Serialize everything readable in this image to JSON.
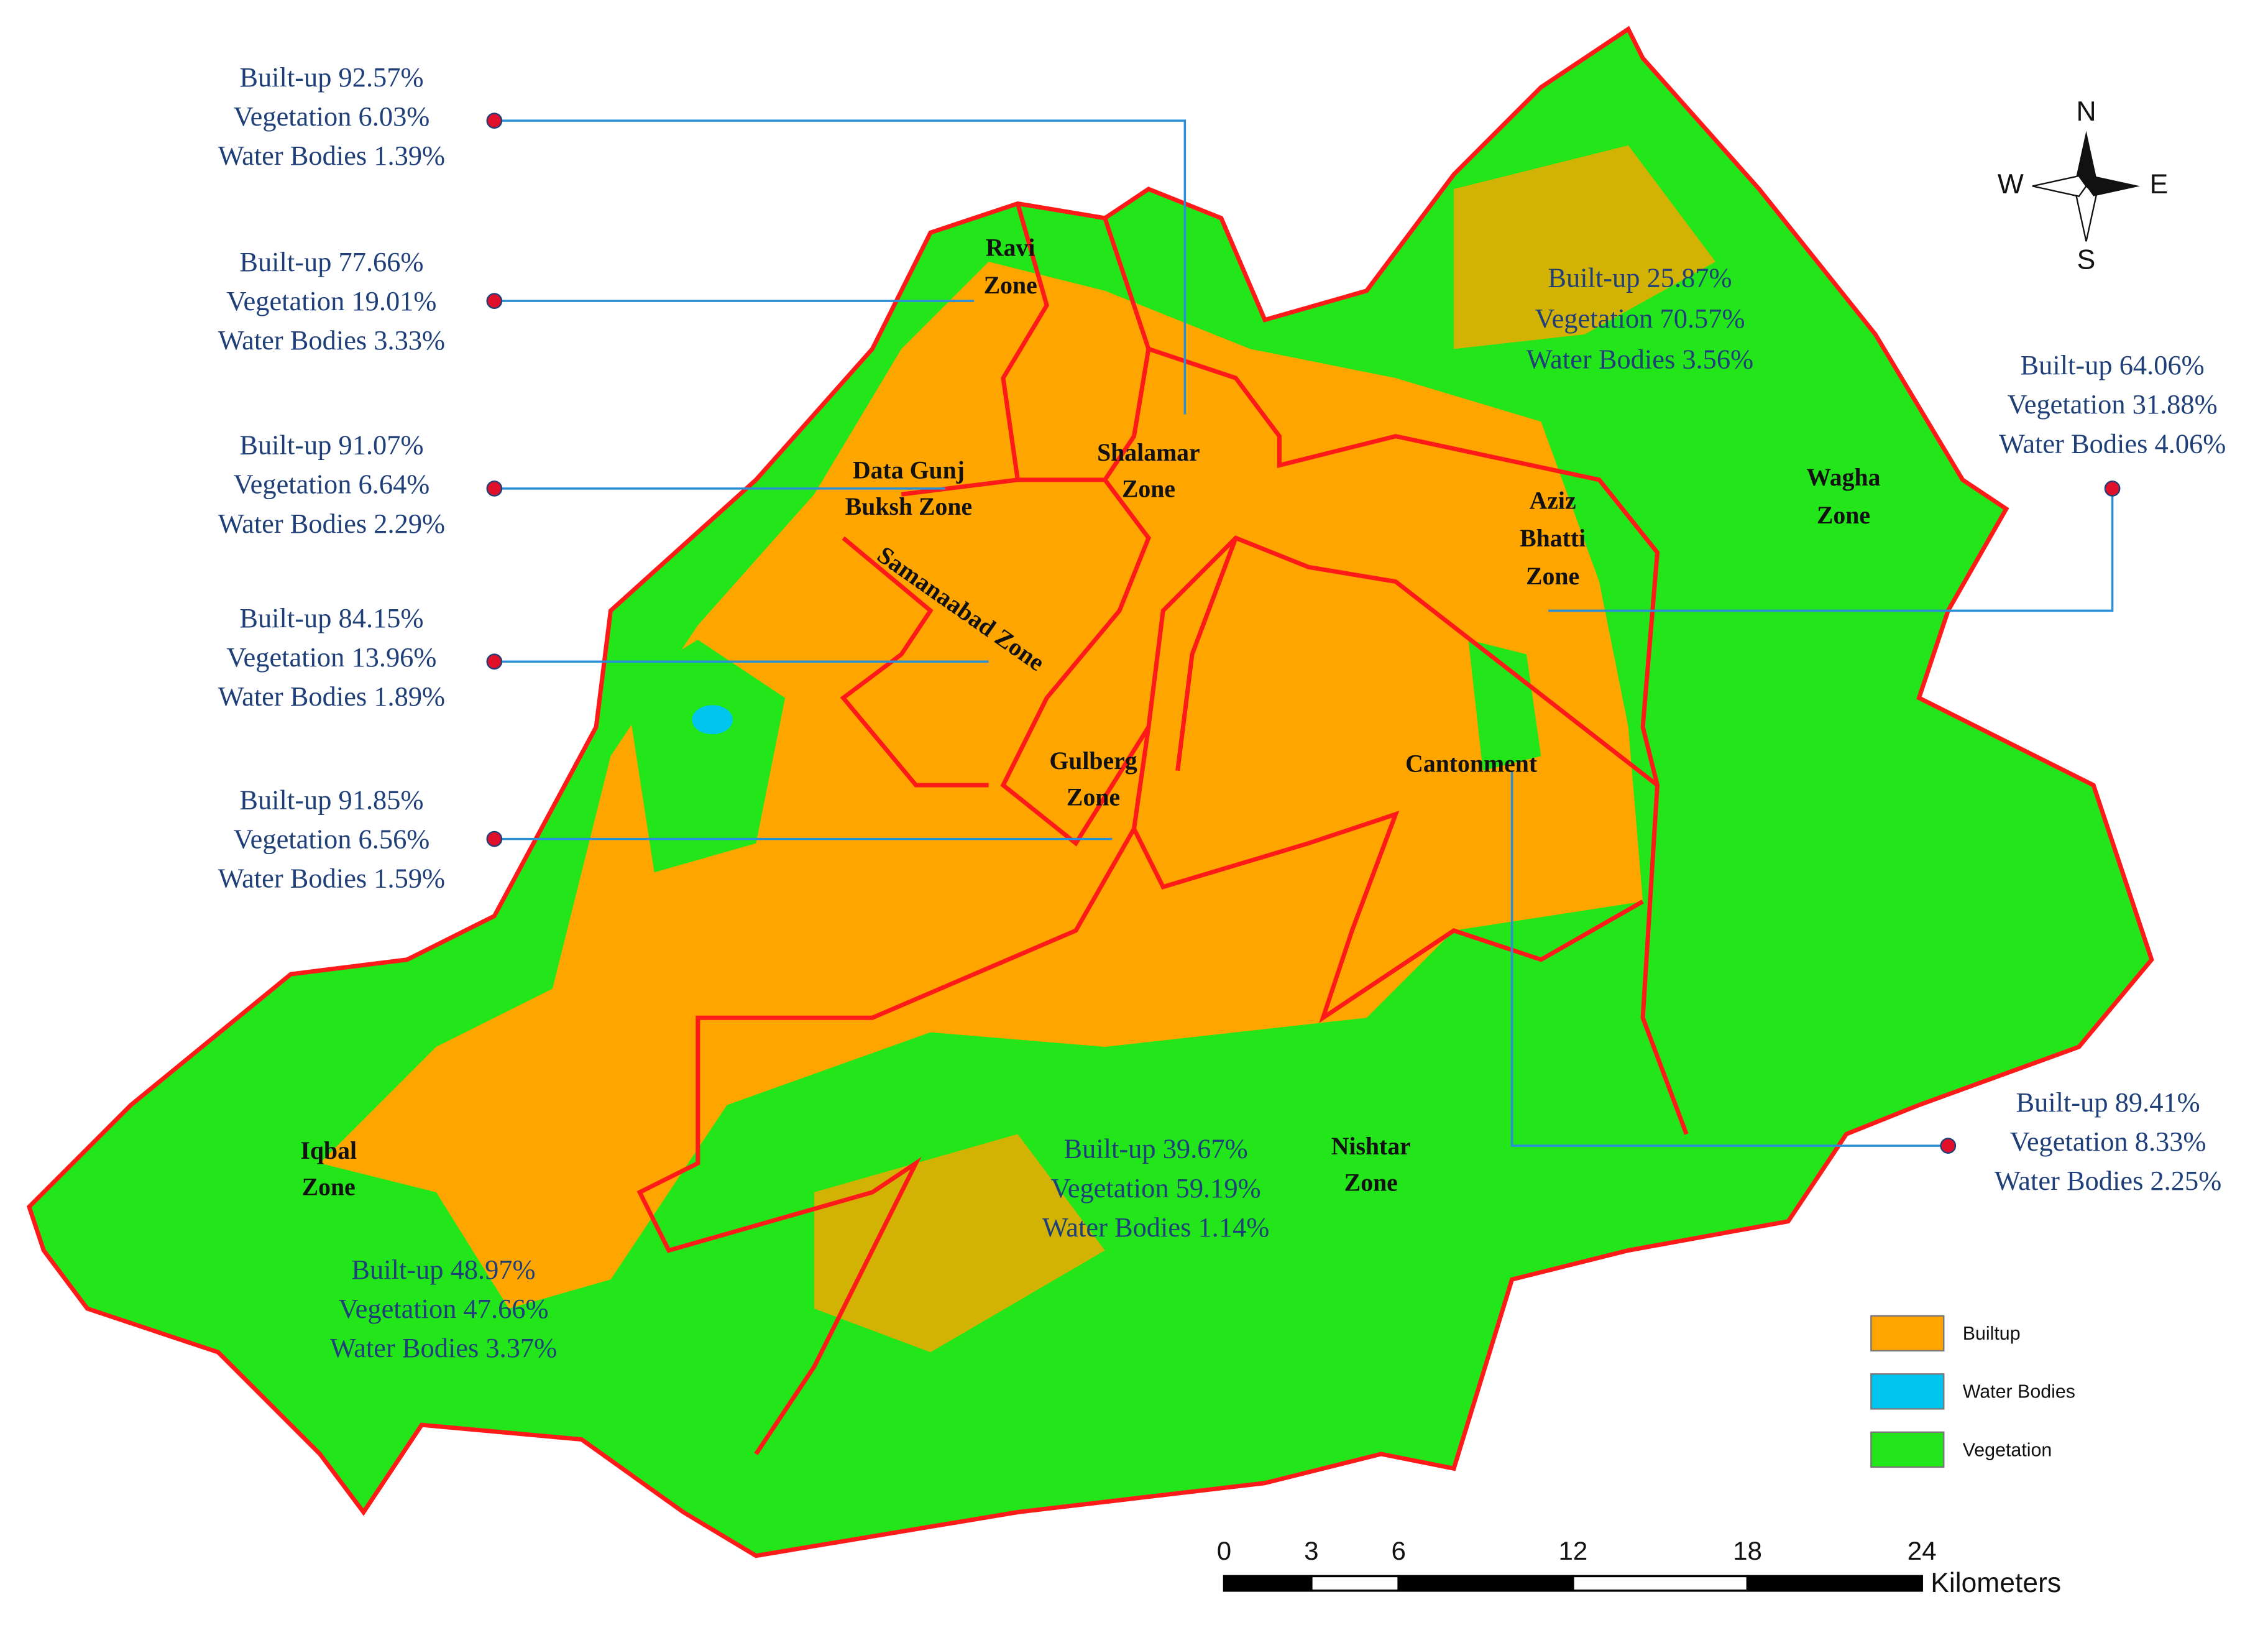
{
  "annotations": [
    {
      "lines": [
        "Built-up  92.57%",
        "Vegetation 6.03%",
        "Water Bodies 1.39%"
      ]
    },
    {
      "lines": [
        "Built-up  77.66%",
        "Vegetation 19.01%",
        "Water Bodies 3.33%"
      ]
    },
    {
      "lines": [
        "Built-up  91.07%",
        "Vegetation 6.64%",
        "Water Bodies 2.29%"
      ]
    },
    {
      "lines": [
        "Built-up  84.15%",
        "Vegetation 13.96%",
        "Water Bodies 1.89%"
      ]
    },
    {
      "lines": [
        "Built-up  91.85%",
        "Vegetation 6.56%",
        "Water Bodies 1.59%"
      ]
    },
    {
      "lines": [
        "Built-up  64.06%",
        "Vegetation 31.88%",
        "Water Bodies 4.06%"
      ]
    },
    {
      "lines": [
        "Built-up  89.41%",
        "Vegetation 8.33%",
        "Water Bodies 2.25%"
      ]
    },
    {
      "lines": [
        "Built-up  25.87%",
        "Vegetation 70.57%",
        "Water Bodies 3.56%"
      ]
    },
    {
      "lines": [
        "Built-up  39.67%",
        "Vegetation 59.19%",
        "Water Bodies 1.14%"
      ]
    },
    {
      "lines": [
        "Built-up  48.97%",
        "Vegetation 47.66%",
        "Water Bodies 3.37%"
      ]
    }
  ],
  "zones": [
    {
      "lines": [
        "Ravi",
        "Zone"
      ]
    },
    {
      "lines": [
        "Shalamar",
        "Zone"
      ]
    },
    {
      "lines": [
        "Data Gunj",
        "Buksh Zone"
      ]
    },
    {
      "lines": [
        "Samanaabad Zone"
      ]
    },
    {
      "lines": [
        "Gulberg",
        "Zone"
      ]
    },
    {
      "lines": [
        "Cantonment"
      ]
    },
    {
      "lines": [
        "Aziz",
        "Bhatti",
        "Zone"
      ]
    },
    {
      "lines": [
        "Wagha",
        "Zone"
      ]
    },
    {
      "lines": [
        "Iqbal",
        "Zone"
      ]
    },
    {
      "lines": [
        "Nishtar",
        "Zone"
      ]
    }
  ],
  "legend": [
    {
      "label": "Builtup",
      "color": "#ffa500"
    },
    {
      "label": "Water Bodies",
      "color": "#00c5ef"
    },
    {
      "label": "Vegetation",
      "color": "#22e61a"
    }
  ],
  "scale_bar": {
    "ticks": [
      0,
      3,
      6,
      12,
      18,
      24
    ],
    "unit": "Kilometers"
  },
  "compass": {
    "north": "N",
    "east": "E",
    "south": "S",
    "west": "W"
  }
}
